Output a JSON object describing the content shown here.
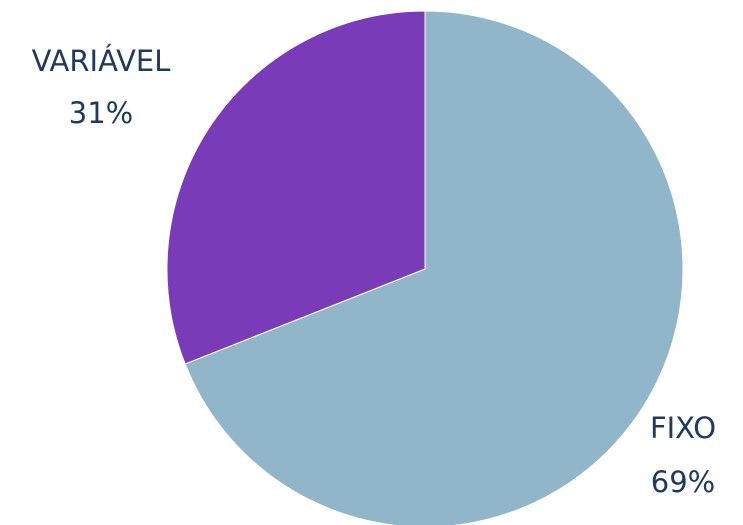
{
  "chart_data": {
    "type": "pie",
    "title": "",
    "start_angle_deg": 0,
    "direction": "clockwise",
    "slices": [
      {
        "label": "FIXO",
        "value": 69,
        "value_text": "69%",
        "color": "#92b6c9"
      },
      {
        "label": "VARIÁVEL",
        "value": 31,
        "value_text": "31%",
        "color": "#793bb8"
      }
    ],
    "legend": "none",
    "data_labels": "outside"
  }
}
